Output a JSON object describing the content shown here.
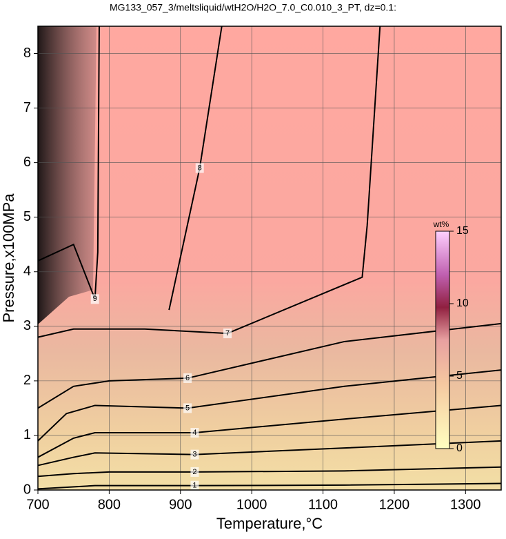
{
  "chart_data": {
    "type": "contour",
    "title": "MG133_057_3/meltsliquid/wtH2O/H2O_7.0_C0.010_3_PT, dz=0.1:",
    "x_label": "Temperature,°C",
    "y_label": "Pressure,x100MPa",
    "xlim": [
      700,
      1350
    ],
    "ylim": [
      0,
      8.5
    ],
    "xticks": [
      700,
      800,
      900,
      1000,
      1100,
      1200,
      1300
    ],
    "yticks": [
      0,
      1,
      2,
      3,
      4,
      5,
      6,
      7,
      8
    ],
    "grid": true,
    "contours": [
      {
        "level": 1,
        "x": [
          700,
          780,
          920,
          1130,
          1350
        ],
        "y": [
          0.02,
          0.08,
          0.08,
          0.09,
          0.12
        ]
      },
      {
        "level": 2,
        "x": [
          700,
          750,
          800,
          920,
          1130,
          1350
        ],
        "y": [
          0.25,
          0.3,
          0.33,
          0.33,
          0.35,
          0.42
        ]
      },
      {
        "level": 3,
        "x": [
          700,
          750,
          780,
          920,
          1130,
          1350
        ],
        "y": [
          0.45,
          0.6,
          0.68,
          0.65,
          0.77,
          0.9
        ]
      },
      {
        "level": 4,
        "x": [
          700,
          750,
          780,
          920,
          1130,
          1350
        ],
        "y": [
          0.6,
          0.95,
          1.05,
          1.05,
          1.3,
          1.55
        ]
      },
      {
        "level": 5,
        "x": [
          700,
          740,
          780,
          910,
          1130,
          1350
        ],
        "y": [
          0.9,
          1.4,
          1.55,
          1.5,
          1.9,
          2.2
        ]
      },
      {
        "level": 6,
        "x": [
          700,
          750,
          800,
          910,
          1130,
          1350
        ],
        "y": [
          1.5,
          1.9,
          2.0,
          2.05,
          2.72,
          3.05
        ]
      },
      {
        "level": 7,
        "x": [
          700,
          750,
          850,
          966,
          1155,
          1162,
          1180
        ],
        "y": [
          2.8,
          2.95,
          2.95,
          2.87,
          3.9,
          4.85,
          8.5
        ]
      },
      {
        "level": 8,
        "x": [
          884,
          927,
          958
        ],
        "y": [
          3.3,
          5.9,
          8.5
        ]
      },
      {
        "level": 9,
        "x": [
          700,
          750,
          780,
          784,
          786
        ],
        "y": [
          4.2,
          4.5,
          3.5,
          4.36,
          8.5
        ]
      }
    ],
    "colorbar": {
      "label": "wt%",
      "lim": [
        0,
        15
      ],
      "ticks": [
        0,
        5,
        10,
        15
      ]
    }
  }
}
